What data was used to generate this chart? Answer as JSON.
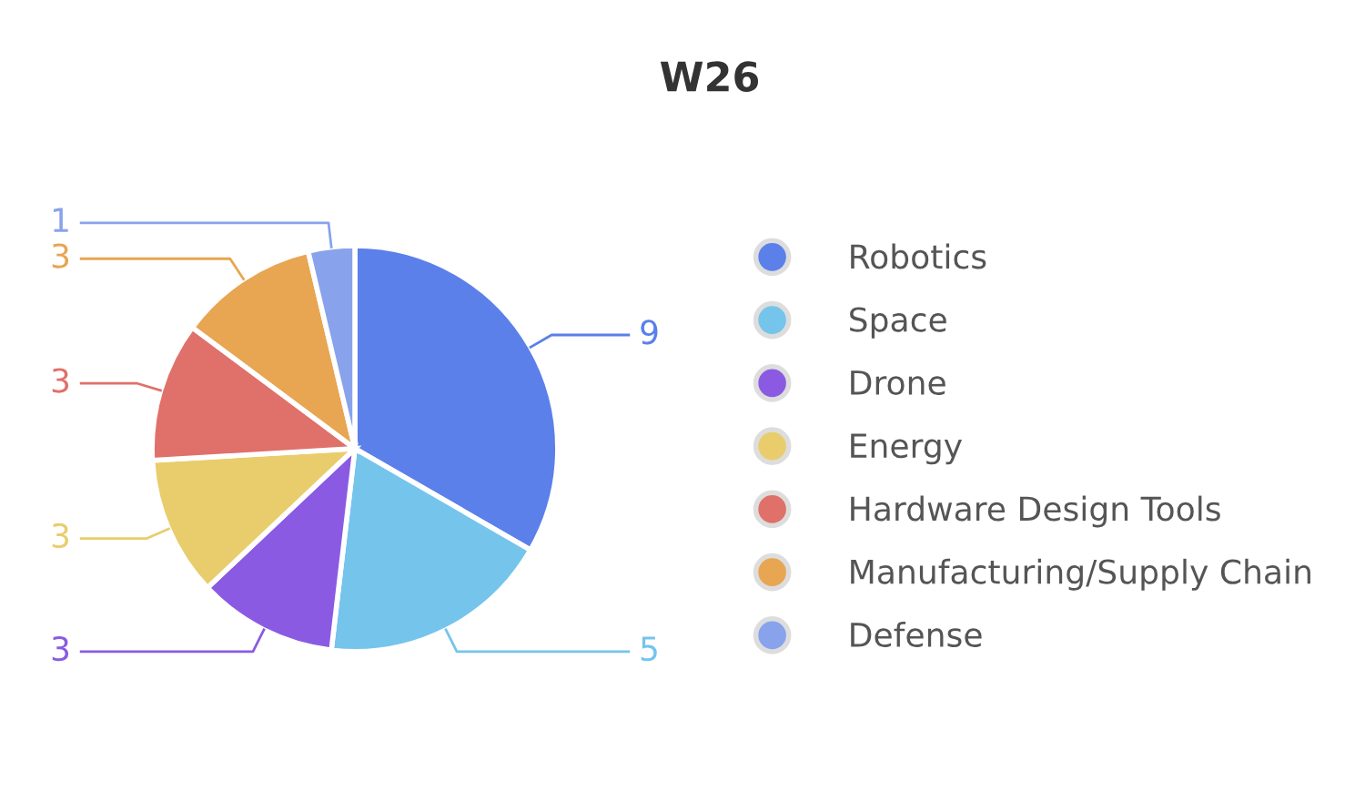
{
  "chart_data": {
    "type": "pie",
    "title": "W26",
    "categories": [
      "Robotics",
      "Space",
      "Drone",
      "Energy",
      "Hardware Design Tools",
      "Manufacturing/Supply Chain",
      "Defense"
    ],
    "values": [
      9,
      5,
      3,
      3,
      3,
      3,
      1
    ],
    "colors": [
      "#5b80ea",
      "#75c4ec",
      "#8a5be2",
      "#e9cd6c",
      "#e0706a",
      "#e8a552",
      "#88a3ec"
    ],
    "data_labels": true,
    "legend": "right"
  }
}
